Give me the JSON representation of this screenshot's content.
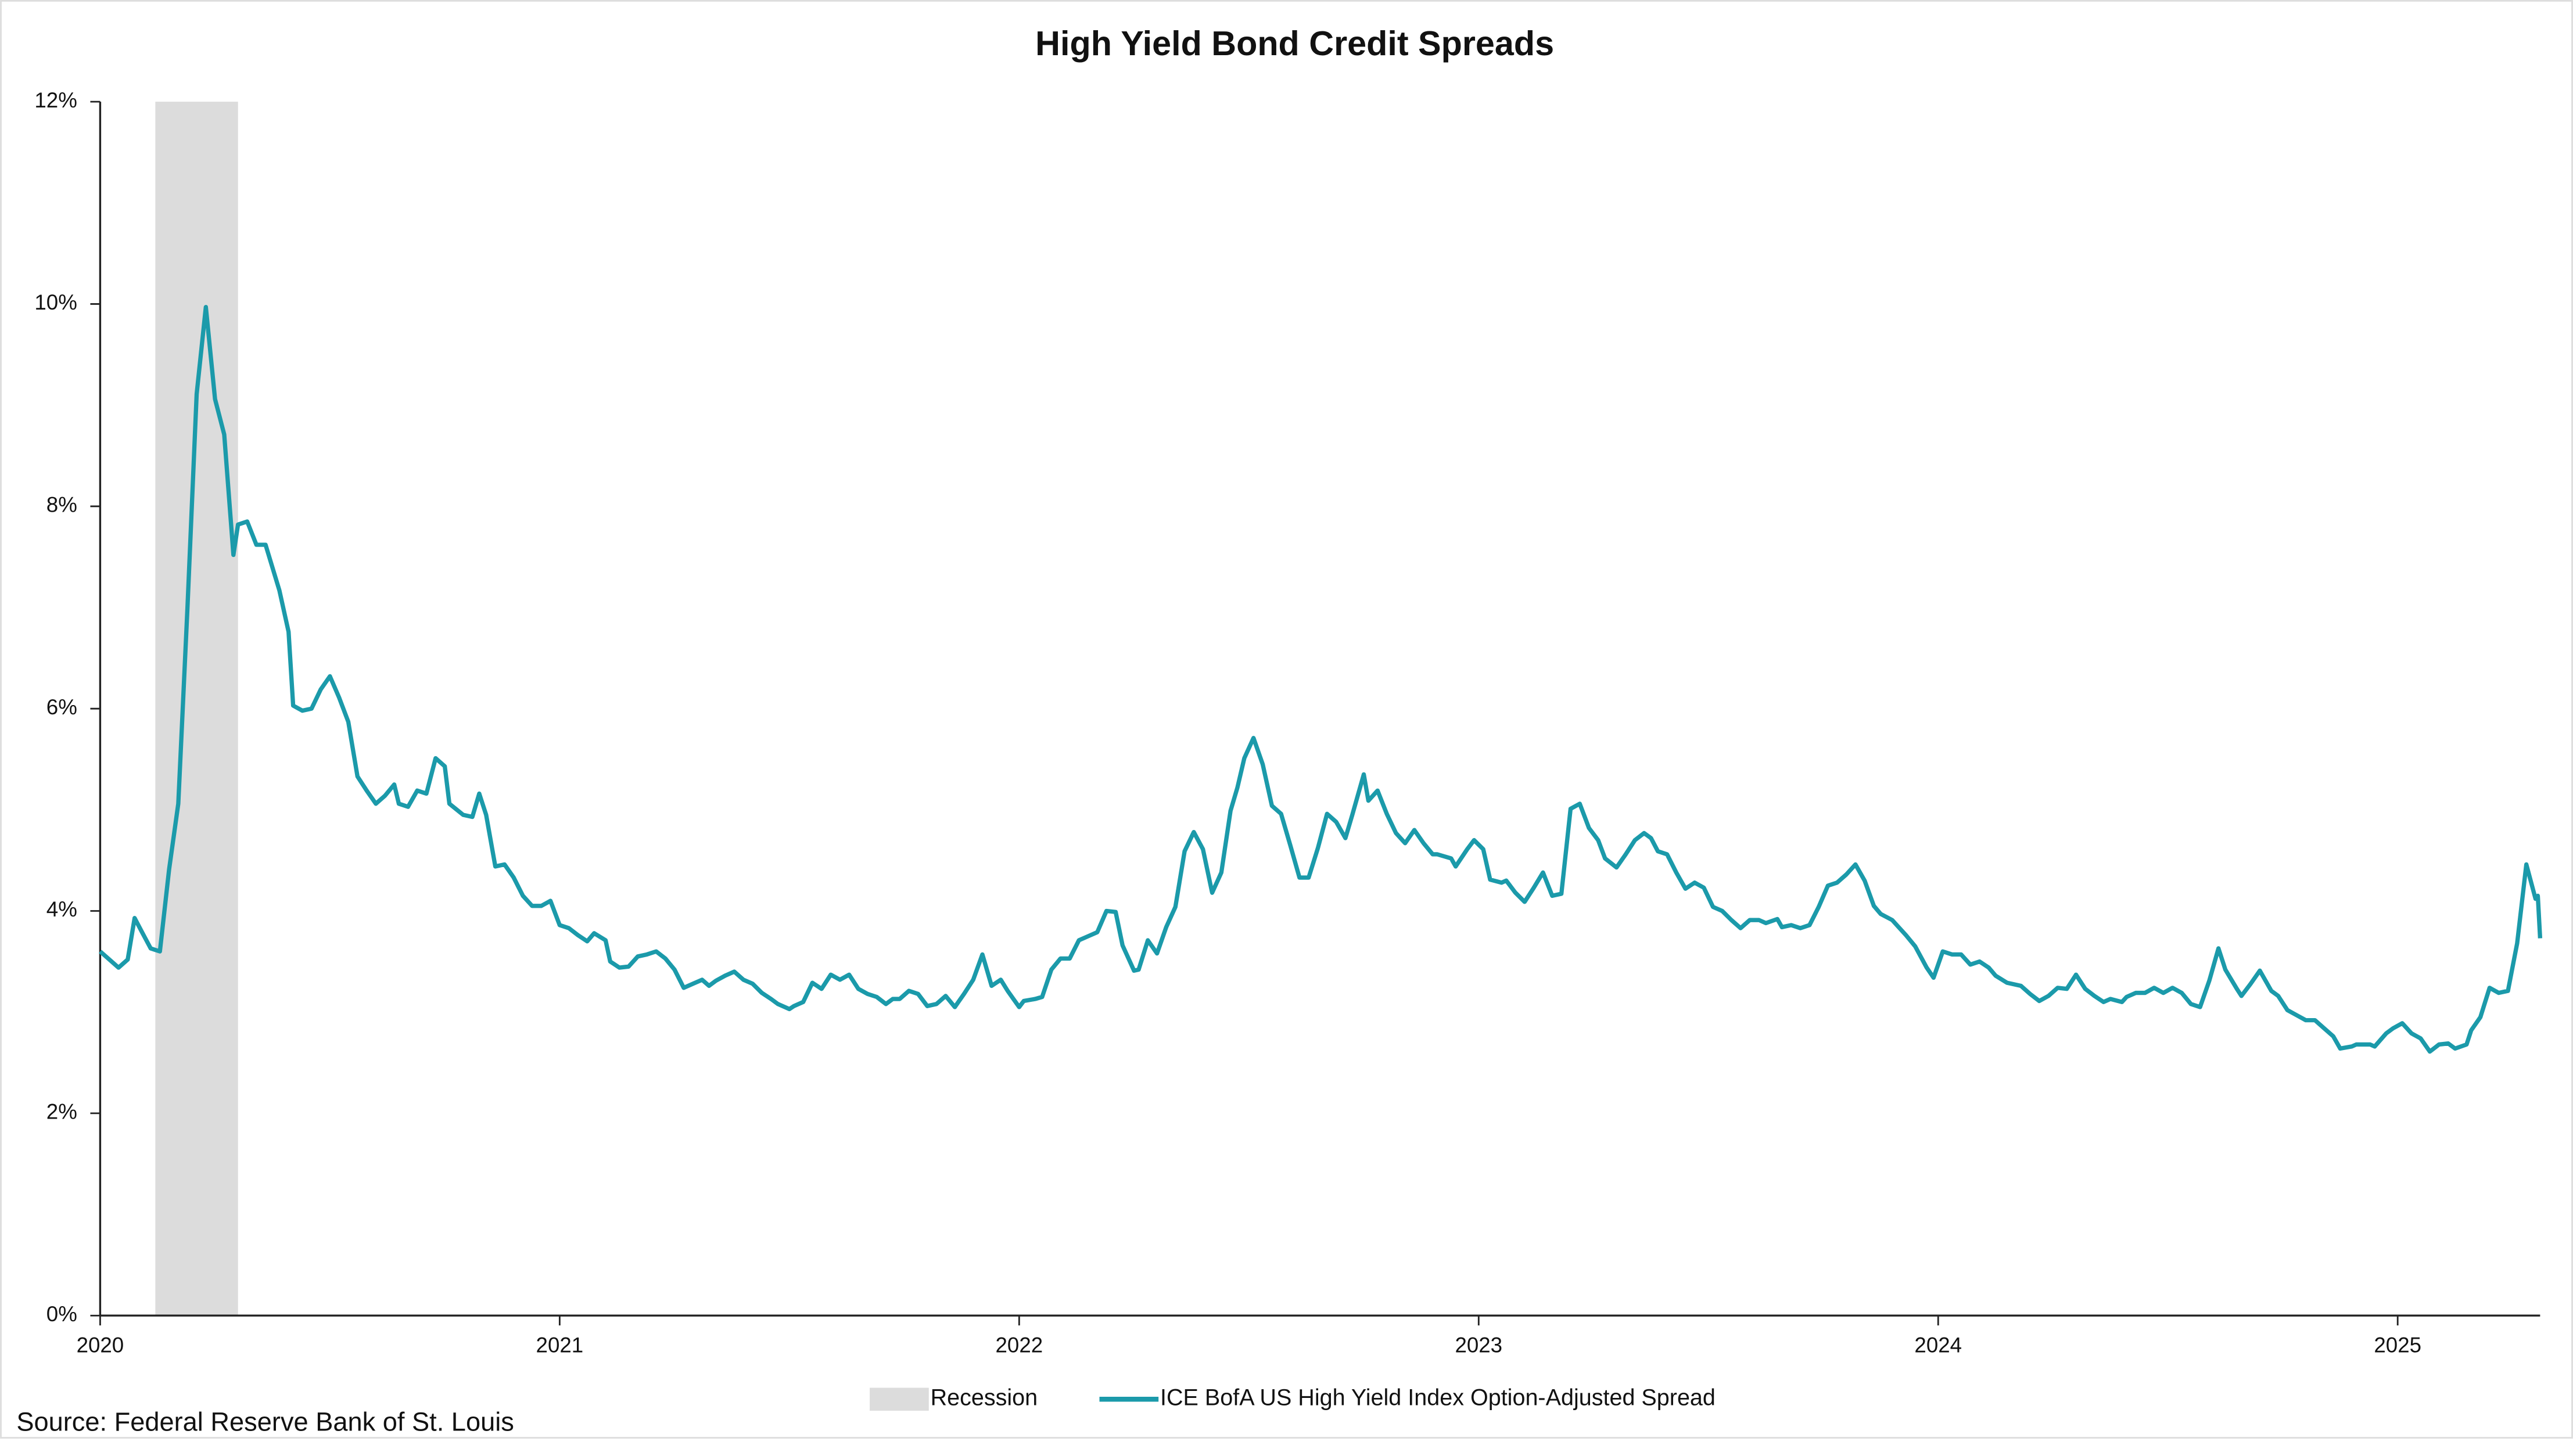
{
  "chart_data": {
    "type": "line",
    "title": "High Yield Bond Credit Spreads",
    "source": "Source: Federal Reserve Bank of St. Louis",
    "x": [
      2020.0,
      2020.04,
      2020.06,
      2020.075,
      2020.09,
      2020.11,
      2020.13,
      2020.15,
      2020.17,
      2020.19,
      2020.21,
      2020.23,
      2020.25,
      2020.27,
      2020.29,
      2020.3,
      2020.32,
      2020.34,
      2020.36,
      2020.39,
      2020.41,
      2020.42,
      2020.44,
      2020.46,
      2020.48,
      2020.5,
      2020.52,
      2020.54,
      2020.56,
      2020.58,
      2020.6,
      2020.62,
      2020.64,
      2020.65,
      2020.67,
      2020.69,
      2020.71,
      2020.73,
      2020.75,
      2020.76,
      2020.79,
      2020.81,
      2020.825,
      2020.84,
      2020.86,
      2020.88,
      2020.9,
      2020.92,
      2020.94,
      2020.96,
      2020.98,
      2021.0,
      2021.02,
      2021.04,
      2021.06,
      2021.075,
      2021.1,
      2021.11,
      2021.13,
      2021.15,
      2021.17,
      2021.19,
      2021.21,
      2021.23,
      2021.25,
      2021.27,
      2021.29,
      2021.31,
      2021.325,
      2021.34,
      2021.36,
      2021.38,
      2021.4,
      2021.42,
      2021.44,
      2021.46,
      2021.475,
      2021.5,
      2021.51,
      2021.53,
      2021.55,
      2021.57,
      2021.59,
      2021.61,
      2021.63,
      2021.65,
      2021.67,
      2021.69,
      2021.71,
      2021.725,
      2021.74,
      2021.76,
      2021.78,
      2021.8,
      2021.82,
      2021.84,
      2021.86,
      2021.88,
      2021.9,
      2021.92,
      2021.94,
      2021.96,
      2021.975,
      2022.0,
      2022.01,
      2022.035,
      2022.05,
      2022.07,
      2022.09,
      2022.11,
      2022.13,
      2022.15,
      2022.17,
      2022.19,
      2022.21,
      2022.225,
      2022.25,
      2022.26,
      2022.28,
      2022.3,
      2022.32,
      2022.34,
      2022.36,
      2022.38,
      2022.4,
      2022.42,
      2022.44,
      2022.46,
      2022.475,
      2022.49,
      2022.51,
      2022.53,
      2022.55,
      2022.57,
      2022.59,
      2022.61,
      2022.63,
      2022.65,
      2022.67,
      2022.69,
      2022.71,
      2022.725,
      2022.75,
      2022.76,
      2022.78,
      2022.8,
      2022.82,
      2022.84,
      2022.86,
      2022.88,
      2022.9,
      2022.91,
      2022.94,
      2022.95,
      2022.975,
      2022.99,
      2023.01,
      2023.025,
      2023.05,
      2023.06,
      2023.08,
      2023.1,
      2023.12,
      2023.14,
      2023.16,
      2023.18,
      2023.2,
      2023.22,
      2023.24,
      2023.26,
      2023.275,
      2023.3,
      2023.32,
      2023.34,
      2023.36,
      2023.375,
      2023.39,
      2023.41,
      2023.43,
      2023.45,
      2023.47,
      2023.49,
      2023.51,
      2023.53,
      2023.55,
      2023.57,
      2023.59,
      2023.61,
      2023.625,
      2023.65,
      2023.66,
      2023.68,
      2023.7,
      2023.72,
      2023.74,
      2023.76,
      2023.78,
      2023.8,
      2023.82,
      2023.84,
      2023.86,
      2023.875,
      2023.9,
      2023.91,
      2023.93,
      2023.95,
      2023.975,
      2023.99,
      2024.01,
      2024.03,
      2024.05,
      2024.07,
      2024.09,
      2024.11,
      2024.125,
      2024.15,
      2024.16,
      2024.18,
      2024.2,
      2024.22,
      2024.24,
      2024.26,
      2024.28,
      2024.3,
      2024.32,
      2024.34,
      2024.36,
      2024.375,
      2024.4,
      2024.41,
      2024.43,
      2024.45,
      2024.47,
      2024.49,
      2024.51,
      2024.53,
      2024.55,
      2024.57,
      2024.59,
      2024.61,
      2024.625,
      2024.65,
      2024.66,
      2024.68,
      2024.7,
      2024.725,
      2024.74,
      2024.76,
      2024.78,
      2024.8,
      2024.82,
      2024.84,
      2024.86,
      2024.875,
      2024.9,
      2024.91,
      2024.94,
      2024.95,
      2024.975,
      2024.99,
      2025.01,
      2025.03,
      2025.05,
      2025.07,
      2025.09,
      2025.11,
      2025.125,
      2025.15,
      2025.16,
      2025.18,
      2025.2,
      2025.22,
      2025.24,
      2025.26,
      2025.28,
      2025.3,
      2025.305,
      2025.31
    ],
    "series": [
      {
        "name": "ICE BofA US High Yield Index Option-Adjusted Spread",
        "color": "#1b9aaa",
        "values": [
          3.6,
          3.44,
          3.52,
          3.93,
          3.8,
          3.63,
          3.6,
          4.41,
          5.06,
          7.0,
          9.11,
          9.97,
          9.06,
          8.71,
          7.52,
          7.82,
          7.85,
          7.62,
          7.62,
          7.17,
          6.76,
          6.03,
          5.98,
          6.0,
          6.19,
          6.32,
          6.11,
          5.87,
          5.33,
          5.19,
          5.06,
          5.14,
          5.25,
          5.06,
          5.03,
          5.19,
          5.16,
          5.51,
          5.43,
          5.06,
          4.95,
          4.93,
          5.16,
          4.95,
          4.44,
          4.46,
          4.33,
          4.15,
          4.05,
          4.05,
          4.1,
          3.86,
          3.83,
          3.76,
          3.7,
          3.78,
          3.71,
          3.5,
          3.44,
          3.45,
          3.55,
          3.57,
          3.6,
          3.53,
          3.42,
          3.24,
          3.28,
          3.32,
          3.26,
          3.31,
          3.36,
          3.4,
          3.32,
          3.28,
          3.19,
          3.13,
          3.08,
          3.03,
          3.06,
          3.1,
          3.29,
          3.23,
          3.37,
          3.32,
          3.37,
          3.23,
          3.18,
          3.15,
          3.08,
          3.13,
          3.13,
          3.21,
          3.18,
          3.06,
          3.08,
          3.16,
          3.05,
          3.18,
          3.32,
          3.57,
          3.26,
          3.32,
          3.21,
          3.05,
          3.11,
          3.13,
          3.15,
          3.42,
          3.53,
          3.53,
          3.71,
          3.75,
          3.79,
          4.0,
          3.99,
          3.66,
          3.41,
          3.42,
          3.71,
          3.58,
          3.84,
          4.04,
          4.59,
          4.78,
          4.61,
          4.18,
          4.38,
          4.99,
          5.22,
          5.51,
          5.71,
          5.45,
          5.04,
          4.96,
          4.65,
          4.33,
          4.33,
          4.62,
          4.96,
          4.88,
          4.72,
          4.95,
          5.35,
          5.09,
          5.19,
          4.96,
          4.77,
          4.67,
          4.8,
          4.67,
          4.56,
          4.56,
          4.52,
          4.44,
          4.61,
          4.7,
          4.61,
          4.31,
          4.28,
          4.3,
          4.18,
          4.09,
          4.23,
          4.38,
          4.15,
          4.17,
          5.01,
          5.06,
          4.82,
          4.7,
          4.52,
          4.43,
          4.56,
          4.7,
          4.77,
          4.72,
          4.59,
          4.56,
          4.38,
          4.22,
          4.28,
          4.23,
          4.04,
          4.0,
          3.91,
          3.83,
          3.91,
          3.91,
          3.88,
          3.92,
          3.84,
          3.86,
          3.83,
          3.86,
          4.04,
          4.25,
          4.28,
          4.36,
          4.46,
          4.3,
          4.05,
          3.97,
          3.91,
          3.86,
          3.76,
          3.65,
          3.44,
          3.34,
          3.6,
          3.57,
          3.57,
          3.47,
          3.5,
          3.44,
          3.36,
          3.29,
          3.28,
          3.26,
          3.18,
          3.11,
          3.16,
          3.24,
          3.23,
          3.37,
          3.23,
          3.16,
          3.1,
          3.13,
          3.1,
          3.15,
          3.19,
          3.19,
          3.24,
          3.19,
          3.24,
          3.19,
          3.08,
          3.05,
          3.31,
          3.63,
          3.42,
          3.23,
          3.16,
          3.28,
          3.41,
          3.21,
          3.16,
          3.02,
          2.97,
          2.92,
          2.92,
          2.84,
          2.76,
          2.64,
          2.66,
          2.68,
          2.68,
          2.66,
          2.79,
          2.84,
          2.89,
          2.79,
          2.74,
          2.61,
          2.68,
          2.69,
          2.64,
          2.68,
          2.82,
          2.95,
          3.24,
          3.19,
          3.21,
          3.68,
          4.46,
          4.12,
          4.15,
          3.73
        ]
      }
    ],
    "shaded_regions": [
      {
        "name": "Recession",
        "start": 2020.12,
        "end": 2020.3,
        "color": "#dcdcdc"
      }
    ],
    "xlim": [
      2020,
      2025.31
    ],
    "xticks": [
      2020,
      2021,
      2022,
      2023,
      2024,
      2025
    ],
    "ylim": [
      0,
      12
    ],
    "yticks": [
      {
        "value": 0,
        "label": "0%"
      },
      {
        "value": 2,
        "label": "2%"
      },
      {
        "value": 4,
        "label": "4%"
      },
      {
        "value": 6,
        "label": "6%"
      },
      {
        "value": 8,
        "label": "8%"
      },
      {
        "value": 10,
        "label": "10%"
      },
      {
        "value": 12,
        "label": "12%"
      }
    ],
    "grid": false,
    "legend": "bottom"
  }
}
